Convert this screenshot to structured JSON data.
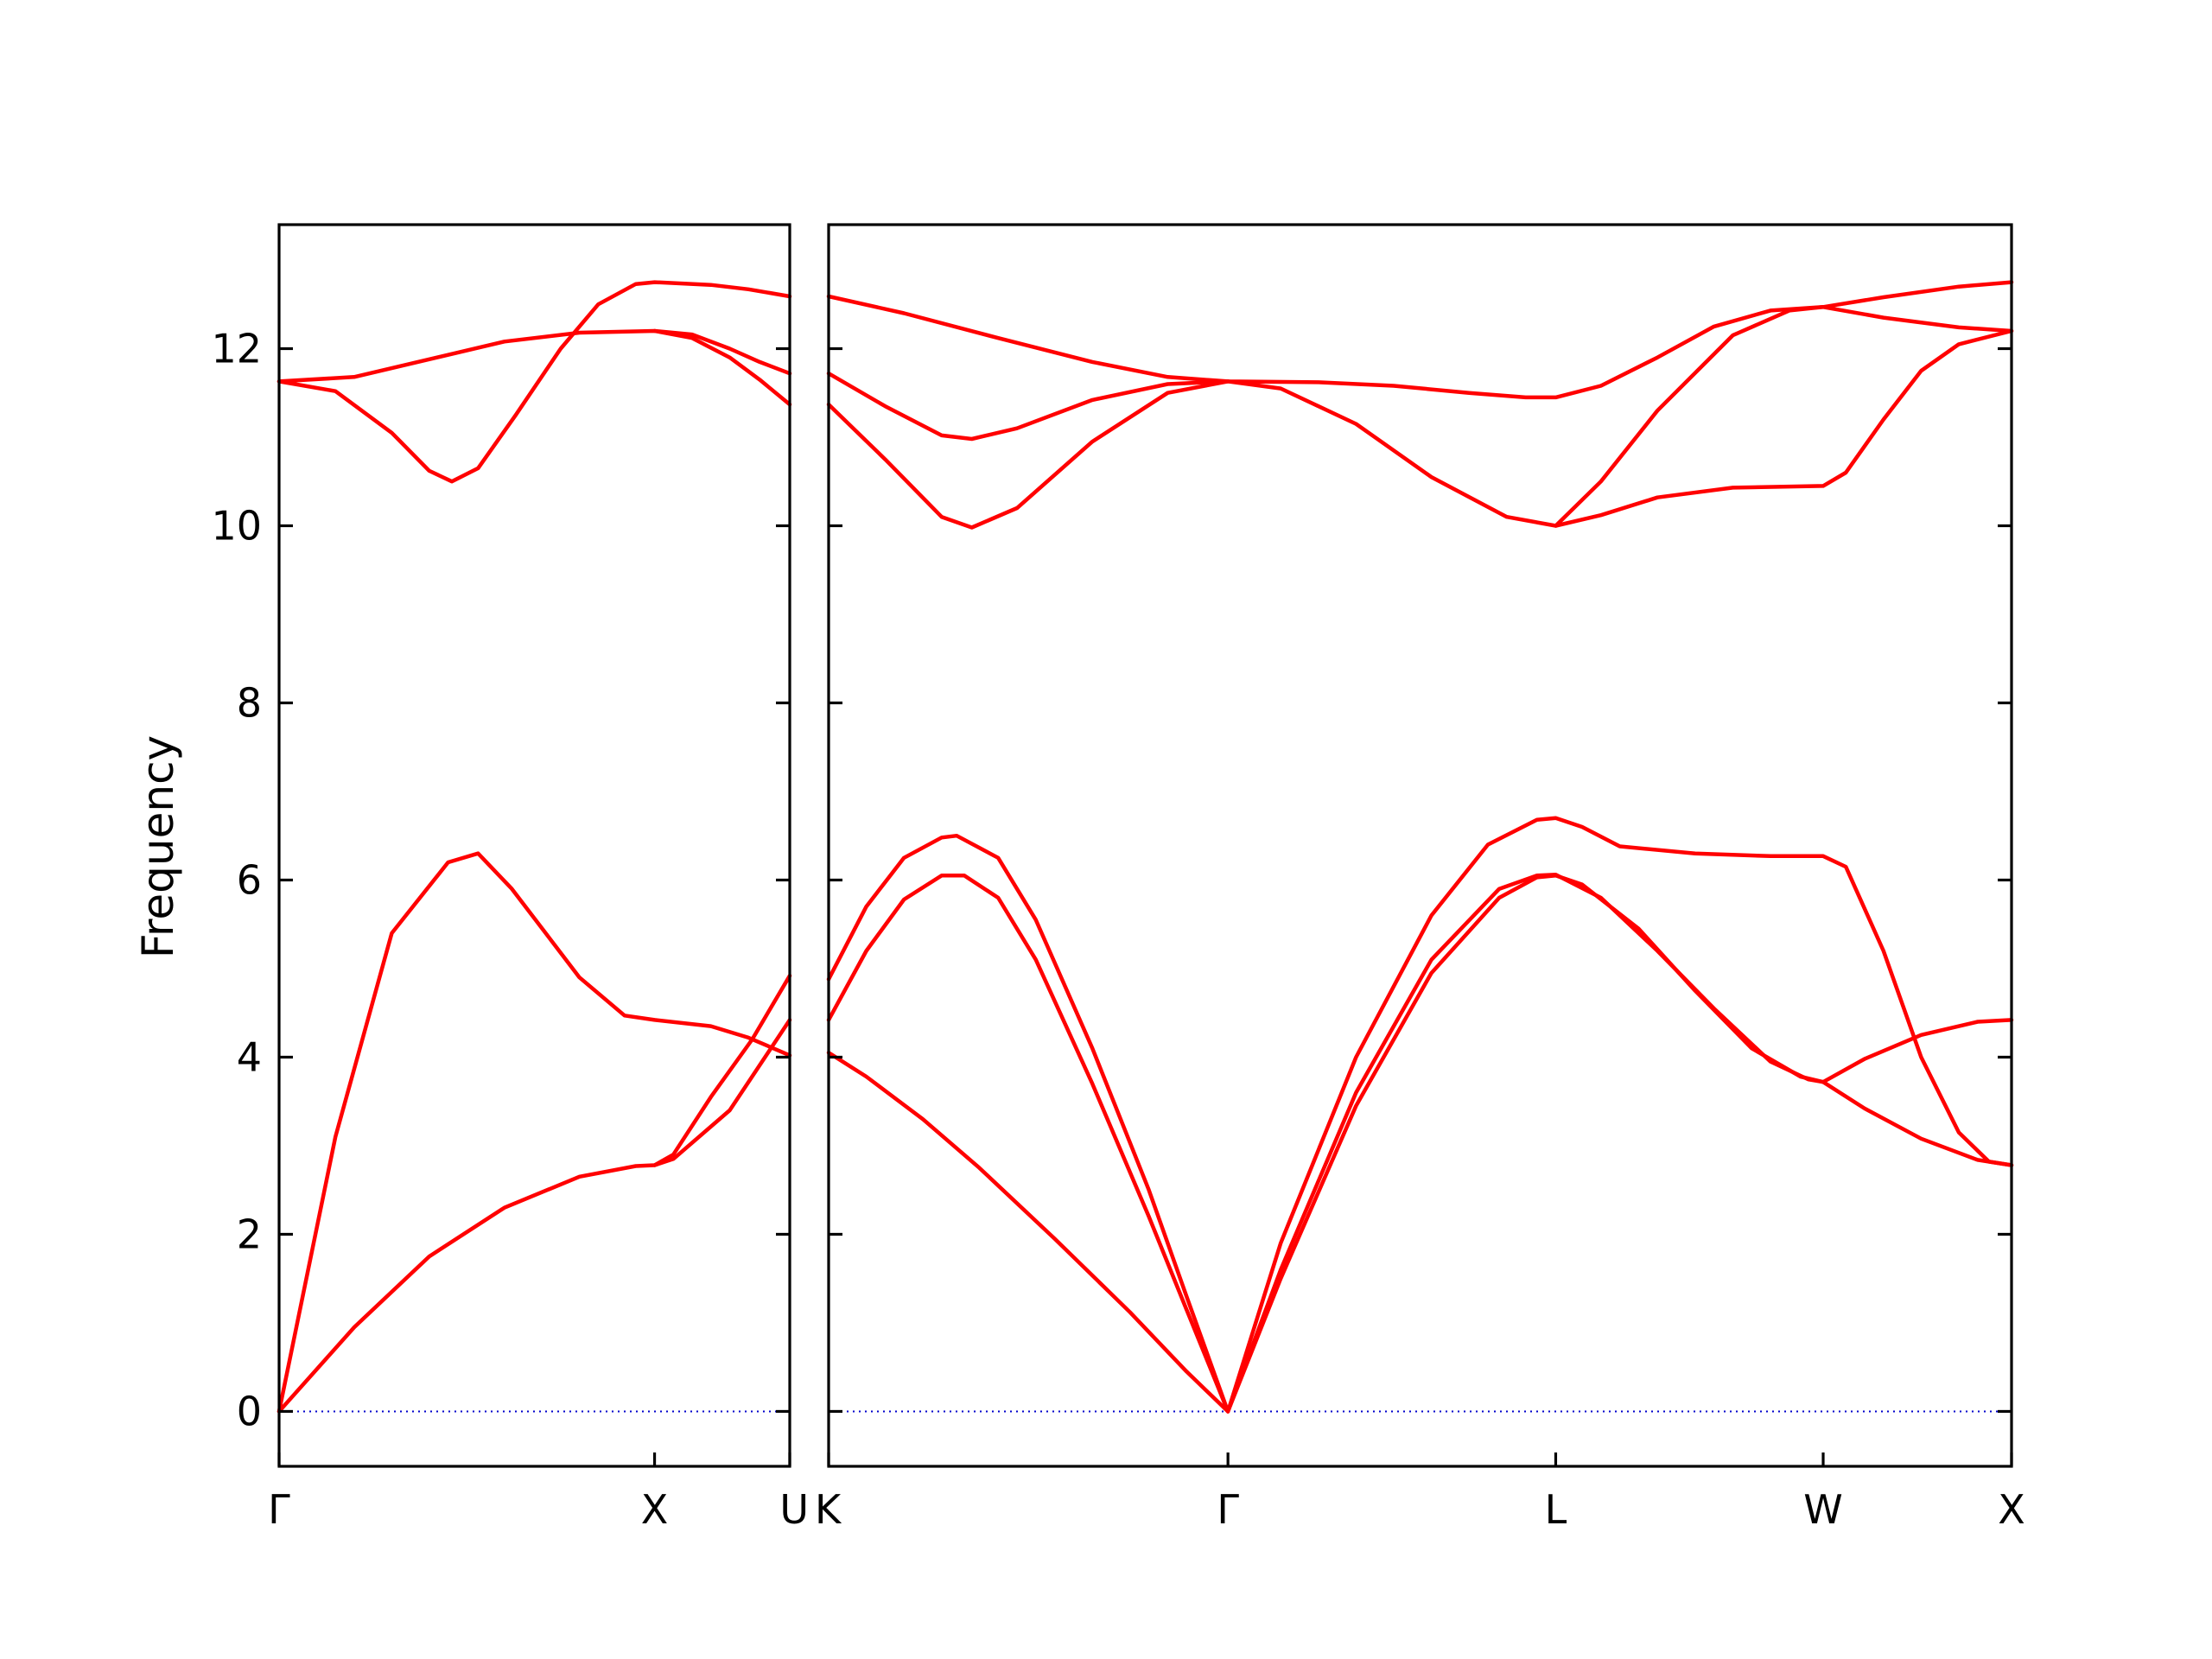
{
  "chart_data": {
    "type": "line",
    "title": "",
    "ylabel": "Frequency",
    "xlabel": "",
    "ylim": [
      -0.62,
      13.4
    ],
    "yticks": [
      0,
      2,
      4,
      6,
      8,
      10,
      12
    ],
    "grid": false,
    "legend": "none",
    "colors": {
      "band": "#ff0000",
      "zero_line": "#0000cc",
      "axes": "#000000"
    },
    "zero_line": {
      "y": 0
    },
    "panels": [
      {
        "name": "left",
        "x_ticks": [
          {
            "x": 0,
            "label": "Γ"
          },
          {
            "x": 1.0,
            "label": "X"
          },
          {
            "x": 1.36,
            "label": "U"
          }
        ],
        "xlim": [
          0,
          1.36
        ],
        "series": [
          {
            "points": [
              [
                0,
                0
              ],
              [
                0.15,
                3.1
              ],
              [
                0.3,
                5.4
              ],
              [
                0.45,
                6.2
              ],
              [
                0.53,
                6.3
              ],
              [
                0.62,
                5.9
              ],
              [
                0.8,
                4.9
              ],
              [
                0.92,
                4.47
              ],
              [
                1.0,
                4.42
              ],
              [
                1.15,
                4.35
              ],
              [
                1.25,
                4.22
              ],
              [
                1.36,
                4.02
              ]
            ]
          },
          {
            "points": [
              [
                0,
                0
              ],
              [
                0.2,
                0.95
              ],
              [
                0.4,
                1.75
              ],
              [
                0.6,
                2.3
              ],
              [
                0.8,
                2.65
              ],
              [
                0.95,
                2.77
              ],
              [
                1.0,
                2.78
              ],
              [
                1.05,
                2.85
              ],
              [
                1.2,
                3.4
              ],
              [
                1.36,
                4.42
              ]
            ]
          },
          {
            "points": [
              [
                1.0,
                2.78
              ],
              [
                1.05,
                2.9
              ],
              [
                1.15,
                3.55
              ],
              [
                1.26,
                4.2
              ],
              [
                1.36,
                4.92
              ]
            ]
          },
          {
            "points": [
              [
                0,
                11.63
              ],
              [
                0.15,
                11.52
              ],
              [
                0.3,
                11.05
              ],
              [
                0.4,
                10.62
              ],
              [
                0.46,
                10.5
              ],
              [
                0.53,
                10.65
              ],
              [
                0.63,
                11.25
              ],
              [
                0.75,
                12.0
              ],
              [
                0.85,
                12.5
              ],
              [
                0.95,
                12.73
              ],
              [
                1.0,
                12.75
              ],
              [
                1.15,
                12.72
              ],
              [
                1.25,
                12.67
              ],
              [
                1.36,
                12.59
              ]
            ]
          },
          {
            "points": [
              [
                0,
                11.63
              ],
              [
                0.2,
                11.68
              ],
              [
                0.4,
                11.88
              ],
              [
                0.6,
                12.08
              ],
              [
                0.8,
                12.18
              ],
              [
                1.0,
                12.2
              ],
              [
                1.1,
                12.12
              ],
              [
                1.2,
                11.9
              ],
              [
                1.28,
                11.65
              ],
              [
                1.36,
                11.37
              ]
            ]
          },
          {
            "points": [
              [
                1.0,
                12.2
              ],
              [
                1.1,
                12.16
              ],
              [
                1.2,
                12.0
              ],
              [
                1.28,
                11.85
              ],
              [
                1.36,
                11.72
              ]
            ]
          }
        ]
      },
      {
        "name": "right",
        "x_ticks": [
          {
            "x": 0,
            "label": "K"
          },
          {
            "x": 1.06,
            "label": "Γ"
          },
          {
            "x": 1.93,
            "label": "L"
          },
          {
            "x": 2.64,
            "label": "W"
          },
          {
            "x": 3.14,
            "label": "X"
          }
        ],
        "xlim": [
          0,
          3.14
        ],
        "series": [
          {
            "points": [
              [
                0,
                4.05
              ],
              [
                0.1,
                3.78
              ],
              [
                0.25,
                3.3
              ],
              [
                0.4,
                2.75
              ],
              [
                0.6,
                1.95
              ],
              [
                0.8,
                1.12
              ],
              [
                0.95,
                0.45
              ],
              [
                1.06,
                0
              ]
            ]
          },
          {
            "points": [
              [
                0,
                4.42
              ],
              [
                0.1,
                5.2
              ],
              [
                0.2,
                5.78
              ],
              [
                0.3,
                6.05
              ],
              [
                0.36,
                6.05
              ],
              [
                0.45,
                5.8
              ],
              [
                0.55,
                5.1
              ],
              [
                0.7,
                3.7
              ],
              [
                0.85,
                2.2
              ],
              [
                0.95,
                1.15
              ],
              [
                1.06,
                0
              ]
            ]
          },
          {
            "points": [
              [
                0,
                4.88
              ],
              [
                0.1,
                5.7
              ],
              [
                0.2,
                6.25
              ],
              [
                0.3,
                6.48
              ],
              [
                0.34,
                6.5
              ],
              [
                0.45,
                6.25
              ],
              [
                0.55,
                5.55
              ],
              [
                0.7,
                4.1
              ],
              [
                0.85,
                2.5
              ],
              [
                0.95,
                1.3
              ],
              [
                1.06,
                0
              ]
            ]
          },
          {
            "points": [
              [
                1.06,
                0
              ],
              [
                1.2,
                1.6
              ],
              [
                1.4,
                3.6
              ],
              [
                1.6,
                5.1
              ],
              [
                1.78,
                5.9
              ],
              [
                1.88,
                6.05
              ],
              [
                1.93,
                6.06
              ],
              [
                2.05,
                5.8
              ],
              [
                2.2,
                5.2
              ],
              [
                2.35,
                4.55
              ],
              [
                2.5,
                3.95
              ],
              [
                2.6,
                3.75
              ],
              [
                2.64,
                3.72
              ]
            ]
          },
          {
            "points": [
              [
                1.06,
                0
              ],
              [
                1.2,
                1.5
              ],
              [
                1.4,
                3.45
              ],
              [
                1.6,
                4.95
              ],
              [
                1.78,
                5.8
              ],
              [
                1.88,
                6.03
              ],
              [
                1.93,
                6.05
              ],
              [
                2.0,
                5.95
              ],
              [
                2.15,
                5.45
              ],
              [
                2.3,
                4.75
              ],
              [
                2.45,
                4.1
              ],
              [
                2.58,
                3.78
              ],
              [
                2.64,
                3.72
              ]
            ]
          },
          {
            "points": [
              [
                1.06,
                0
              ],
              [
                1.2,
                1.9
              ],
              [
                1.4,
                4.0
              ],
              [
                1.6,
                5.6
              ],
              [
                1.75,
                6.4
              ],
              [
                1.88,
                6.68
              ],
              [
                1.93,
                6.7
              ],
              [
                2.0,
                6.6
              ],
              [
                2.1,
                6.38
              ],
              [
                2.3,
                6.3
              ],
              [
                2.5,
                6.27
              ],
              [
                2.64,
                6.27
              ],
              [
                2.7,
                6.15
              ],
              [
                2.8,
                5.2
              ],
              [
                2.9,
                4.0
              ],
              [
                3.0,
                3.15
              ],
              [
                3.08,
                2.82
              ],
              [
                3.14,
                2.78
              ]
            ]
          },
          {
            "points": [
              [
                2.64,
                3.72
              ],
              [
                2.75,
                3.98
              ],
              [
                2.9,
                4.25
              ],
              [
                3.05,
                4.4
              ],
              [
                3.14,
                4.42
              ]
            ]
          },
          {
            "points": [
              [
                2.64,
                3.72
              ],
              [
                2.75,
                3.42
              ],
              [
                2.9,
                3.08
              ],
              [
                3.05,
                2.84
              ],
              [
                3.14,
                2.78
              ]
            ]
          },
          {
            "points": [
              [
                0,
                12.59
              ],
              [
                0.2,
                12.4
              ],
              [
                0.45,
                12.12
              ],
              [
                0.7,
                11.85
              ],
              [
                0.9,
                11.68
              ],
              [
                1.06,
                11.63
              ],
              [
                1.3,
                11.62
              ],
              [
                1.5,
                11.58
              ],
              [
                1.7,
                11.5
              ],
              [
                1.85,
                11.45
              ],
              [
                1.93,
                11.45
              ],
              [
                2.05,
                11.58
              ],
              [
                2.2,
                11.9
              ],
              [
                2.35,
                12.25
              ],
              [
                2.5,
                12.43
              ],
              [
                2.64,
                12.47
              ],
              [
                2.8,
                12.58
              ],
              [
                3.0,
                12.7
              ],
              [
                3.14,
                12.75
              ]
            ]
          },
          {
            "points": [
              [
                0,
                11.72
              ],
              [
                0.15,
                11.35
              ],
              [
                0.3,
                11.02
              ],
              [
                0.38,
                10.98
              ],
              [
                0.5,
                11.1
              ],
              [
                0.7,
                11.42
              ],
              [
                0.9,
                11.6
              ],
              [
                1.06,
                11.63
              ]
            ]
          },
          {
            "points": [
              [
                0,
                11.37
              ],
              [
                0.15,
                10.75
              ],
              [
                0.3,
                10.1
              ],
              [
                0.38,
                9.98
              ],
              [
                0.5,
                10.2
              ],
              [
                0.7,
                10.95
              ],
              [
                0.9,
                11.5
              ],
              [
                1.06,
                11.63
              ],
              [
                1.2,
                11.55
              ],
              [
                1.4,
                11.15
              ],
              [
                1.6,
                10.55
              ],
              [
                1.8,
                10.1
              ],
              [
                1.93,
                10.0
              ],
              [
                2.05,
                10.5
              ],
              [
                2.2,
                11.3
              ],
              [
                2.4,
                12.15
              ],
              [
                2.55,
                12.43
              ],
              [
                2.64,
                12.47
              ],
              [
                2.8,
                12.35
              ],
              [
                3.0,
                12.24
              ],
              [
                3.14,
                12.2
              ]
            ]
          },
          {
            "points": [
              [
                1.93,
                10.0
              ],
              [
                2.05,
                10.12
              ],
              [
                2.2,
                10.32
              ],
              [
                2.4,
                10.43
              ],
              [
                2.64,
                10.45
              ],
              [
                2.7,
                10.6
              ],
              [
                2.8,
                11.2
              ],
              [
                2.9,
                11.75
              ],
              [
                3.0,
                12.05
              ],
              [
                3.14,
                12.2
              ]
            ]
          }
        ]
      }
    ]
  }
}
